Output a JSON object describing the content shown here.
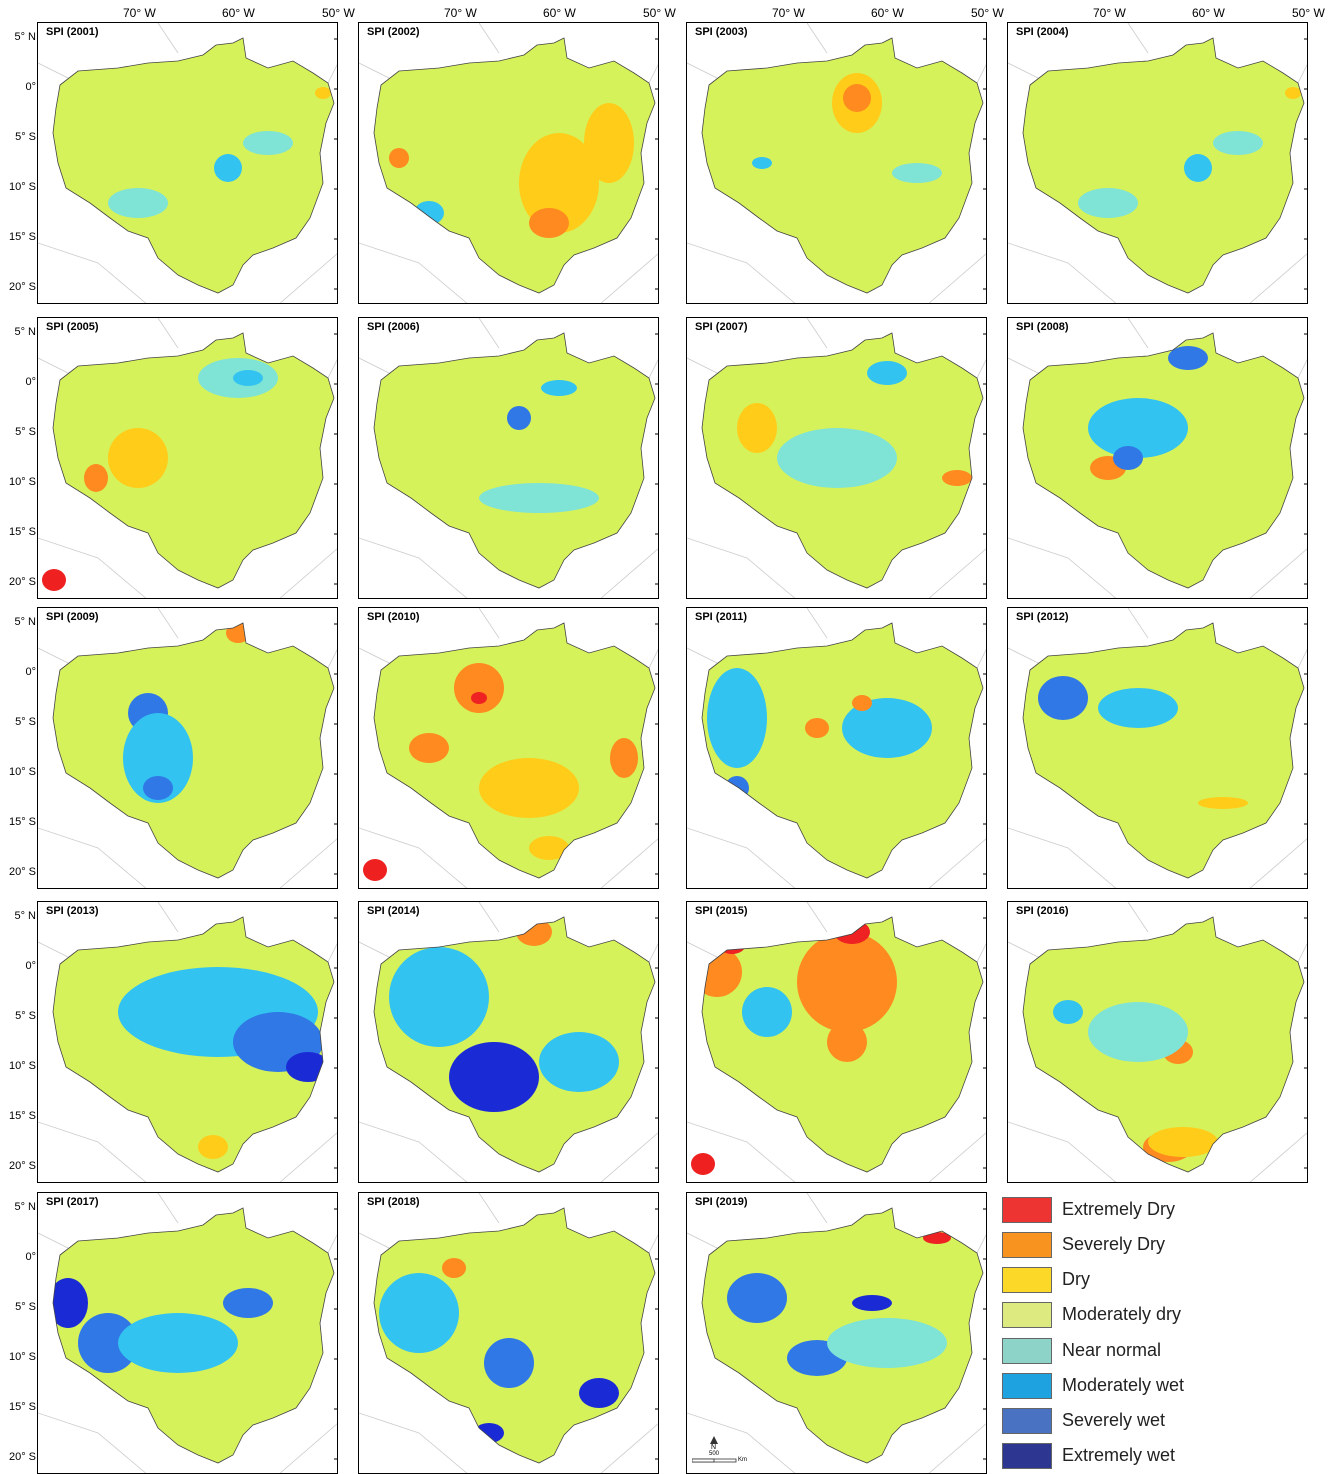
{
  "lon_labels": [
    "70° W",
    "60° W",
    "50° W"
  ],
  "lat_labels": [
    "5° N",
    "0°",
    "5° S",
    "10° S",
    "15° S",
    "20° S"
  ],
  "panels": [
    {
      "title": "SPI (2001)",
      "pattern": "mostly-near-normal",
      "event_marker": false
    },
    {
      "title": "SPI (2002)",
      "pattern": "dry-southeast",
      "event_marker": false
    },
    {
      "title": "SPI (2003)",
      "pattern": "dry-north",
      "event_marker": false
    },
    {
      "title": "SPI (2004)",
      "pattern": "mostly-near-normal",
      "event_marker": false
    },
    {
      "title": "SPI (2005)",
      "pattern": "dry-west",
      "event_marker": true
    },
    {
      "title": "SPI (2006)",
      "pattern": "wet-scattered",
      "event_marker": false
    },
    {
      "title": "SPI (2007)",
      "pattern": "mixed",
      "event_marker": false
    },
    {
      "title": "SPI (2008)",
      "pattern": "wet-north-dry-center",
      "event_marker": false
    },
    {
      "title": "SPI (2009)",
      "pattern": "wet-west",
      "event_marker": false
    },
    {
      "title": "SPI (2010)",
      "pattern": "dry-widespread",
      "event_marker": true
    },
    {
      "title": "SPI (2011)",
      "pattern": "wet-west-dry-center",
      "event_marker": false
    },
    {
      "title": "SPI (2012)",
      "pattern": "wet-northwest",
      "event_marker": false
    },
    {
      "title": "SPI (2013)",
      "pattern": "wet-east",
      "event_marker": false
    },
    {
      "title": "SPI (2014)",
      "pattern": "wet-south",
      "event_marker": false
    },
    {
      "title": "SPI (2015)",
      "pattern": "extreme-dry-north",
      "event_marker": true
    },
    {
      "title": "SPI (2016)",
      "pattern": "dry-south",
      "event_marker": false
    },
    {
      "title": "SPI (2017)",
      "pattern": "wet-southwest",
      "event_marker": false
    },
    {
      "title": "SPI (2018)",
      "pattern": "wet-south-east",
      "event_marker": false
    },
    {
      "title": "SPI (2019)",
      "pattern": "wet-center",
      "event_marker": false
    }
  ],
  "legend": [
    {
      "label": "Extremely Dry",
      "color": "#ee3333"
    },
    {
      "label": "Severely Dry",
      "color": "#f7931e"
    },
    {
      "label": "Dry",
      "color": "#fcd829"
    },
    {
      "label": "Moderately dry",
      "color": "#dcea80"
    },
    {
      "label": "Near normal",
      "color": "#8dd3c7"
    },
    {
      "label": "Moderately wet",
      "color": "#1fa3e0"
    },
    {
      "label": "Severely wet",
      "color": "#4a72c2"
    },
    {
      "label": "Extremely wet",
      "color": "#2d3690"
    }
  ],
  "colors": {
    "base": "#d6f25a",
    "near_normal": "#7fe3d6",
    "dry": "#ffcc1a",
    "severe_dry": "#ff8a1f",
    "extreme_dry": "#ee2222",
    "mod_wet": "#33c3f0",
    "sev_wet": "#2f78e6",
    "ext_wet": "#1a2bd6",
    "marker": "#ee2020"
  },
  "scale_bar": {
    "north": "N",
    "distance": "500",
    "unit": "Km"
  }
}
